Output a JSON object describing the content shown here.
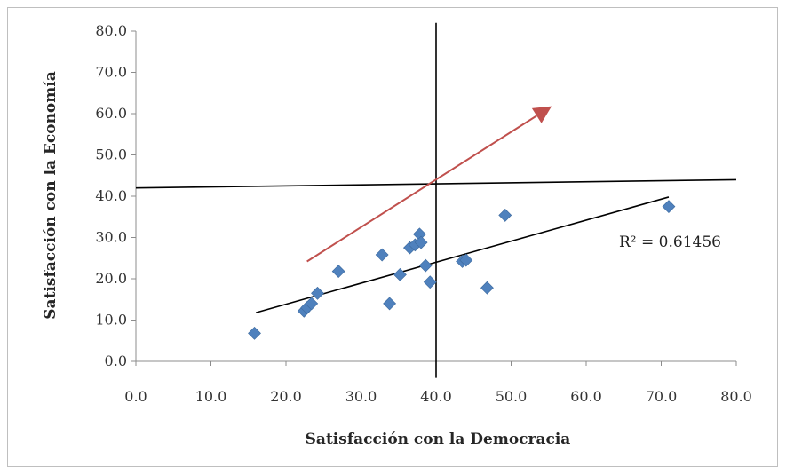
{
  "chart_data": {
    "type": "scatter",
    "xlabel": "Satisfacción con la Democracia",
    "ylabel": "Satisfacción con la Economía",
    "xlim": [
      0,
      80
    ],
    "ylim": [
      0,
      80
    ],
    "xticks": [
      "0.0",
      "10.0",
      "20.0",
      "30.0",
      "40.0",
      "50.0",
      "60.0",
      "70.0",
      "80.0"
    ],
    "yticks": [
      "0.0",
      "10.0",
      "20.0",
      "30.0",
      "40.0",
      "50.0",
      "60.0",
      "70.0",
      "80.0"
    ],
    "grid": false,
    "series": [
      {
        "marker": "diamond",
        "color": "#4f81bd",
        "points": [
          [
            15.8,
            6.8
          ],
          [
            22.4,
            12.2
          ],
          [
            22.8,
            13.0
          ],
          [
            23.4,
            14.0
          ],
          [
            24.2,
            16.5
          ],
          [
            27.0,
            21.8
          ],
          [
            32.8,
            25.8
          ],
          [
            33.8,
            14.0
          ],
          [
            35.2,
            21.0
          ],
          [
            36.5,
            27.5
          ],
          [
            37.2,
            28.2
          ],
          [
            37.8,
            30.8
          ],
          [
            38.0,
            28.8
          ],
          [
            38.6,
            23.2
          ],
          [
            39.2,
            19.2
          ],
          [
            43.5,
            24.2
          ],
          [
            44.0,
            24.5
          ],
          [
            46.8,
            17.8
          ],
          [
            49.2,
            35.4
          ],
          [
            71.0,
            37.5
          ]
        ]
      }
    ],
    "trendline": {
      "type": "linear",
      "x": [
        16,
        71
      ],
      "y": [
        11.8,
        39.8
      ],
      "color": "#000000"
    },
    "r_squared_label": "R² = 0.61456",
    "quadrant_lines": {
      "vertical": {
        "x": 40,
        "y_range": [
          -4,
          82
        ]
      },
      "horizontal": {
        "x_range": [
          0,
          80
        ],
        "y_range": [
          42,
          44
        ],
        "color": "#000000"
      }
    },
    "arrow": {
      "from": [
        22.8,
        24.2
      ],
      "to": [
        55.4,
        61.8
      ],
      "color": "#c0504d"
    }
  }
}
